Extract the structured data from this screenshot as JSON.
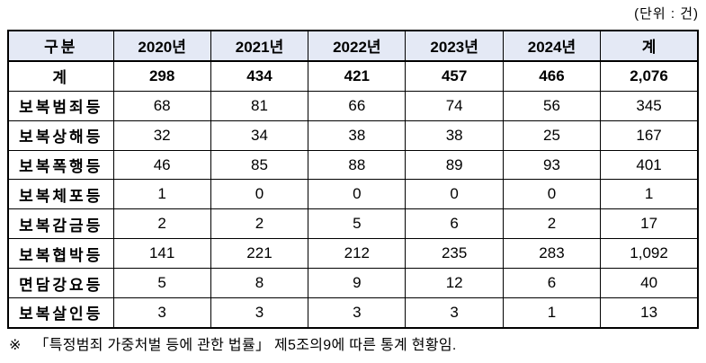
{
  "unit_label": "(단위 : 건)",
  "table": {
    "columns": [
      "구분",
      "2020년",
      "2021년",
      "2022년",
      "2023년",
      "2024년",
      "계"
    ],
    "rows": [
      {
        "label": "계",
        "values": [
          "298",
          "434",
          "421",
          "457",
          "466",
          "2,076"
        ],
        "bold": true
      },
      {
        "label": "보복범죄등",
        "values": [
          "68",
          "81",
          "66",
          "74",
          "56",
          "345"
        ]
      },
      {
        "label": "보복상해등",
        "values": [
          "32",
          "34",
          "38",
          "38",
          "25",
          "167"
        ]
      },
      {
        "label": "보복폭행등",
        "values": [
          "46",
          "85",
          "88",
          "89",
          "93",
          "401"
        ]
      },
      {
        "label": "보복체포등",
        "values": [
          "1",
          "0",
          "0",
          "0",
          "0",
          "1"
        ]
      },
      {
        "label": "보복감금등",
        "values": [
          "2",
          "2",
          "5",
          "6",
          "2",
          "17"
        ]
      },
      {
        "label": "보복협박등",
        "values": [
          "141",
          "221",
          "212",
          "235",
          "283",
          "1,092"
        ]
      },
      {
        "label": "면담강요등",
        "values": [
          "5",
          "8",
          "9",
          "12",
          "6",
          "40"
        ]
      },
      {
        "label": "보복살인등",
        "values": [
          "3",
          "3",
          "3",
          "3",
          "1",
          "13"
        ]
      }
    ]
  },
  "footnote": {
    "marker": "※",
    "text": "「특정범죄 가중처벌 등에 관한 법률」 제5조의9에 따른 통계 현황임."
  },
  "colors": {
    "header_bg": "#e4e9f5",
    "border": "#000000",
    "text": "#000000",
    "background": "#ffffff"
  }
}
